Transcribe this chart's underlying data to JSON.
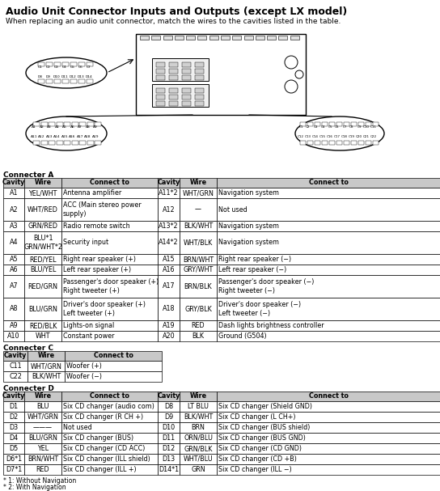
{
  "title": "Audio Unit Connector Inputs and Outputs (except LX model)",
  "subtitle": "When replacing an audio unit connector, match the wires to the cavities listed in the table.",
  "connectorA_header": "Connecter A",
  "connectorA_cols_left": [
    "Cavity",
    "Wire",
    "Connect to"
  ],
  "connectorA_cols_right": [
    "Cavity",
    "Wire",
    "Connect to"
  ],
  "connectorA_rows": [
    [
      "A1",
      "YEL/WHT",
      "Antenna amplifier",
      "A11*2",
      "WHT/GRN",
      "Navigation system"
    ],
    [
      "A2",
      "WHT/RED",
      "ACC (Main stereo power\nsupply)",
      "A12",
      "—",
      "Not used"
    ],
    [
      "A3",
      "GRN/RED",
      "Radio remote switch",
      "A13*2",
      "BLK/WHT",
      "Navigation system"
    ],
    [
      "A4",
      "BLU*1\nGRN/WHT*2",
      "Security input",
      "A14*2",
      "WHT/BLK",
      "Navigation system"
    ],
    [
      "A5",
      "RED/YEL",
      "Right rear speaker (+)",
      "A15",
      "BRN/WHT",
      "Right rear speaker (−)"
    ],
    [
      "A6",
      "BLU/YEL",
      "Left rear speaker (+)",
      "A16",
      "GRY/WHT",
      "Left rear speaker (−)"
    ],
    [
      "A7",
      "RED/GRN",
      "Passenger's door speaker (+)\nRight tweeter (+)",
      "A17",
      "BRN/BLK",
      "Passenger's door speaker (−)\nRight tweeter (−)"
    ],
    [
      "A8",
      "BLU/GRN",
      "Driver's door speaker (+)\nLeft tweeter (+)",
      "A18",
      "GRY/BLK",
      "Driver's door speaker (−)\nLeft tweeter (−)"
    ],
    [
      "A9",
      "RED/BLK",
      "Lights-on signal",
      "A19",
      "RED",
      "Dash lights brightness controller"
    ],
    [
      "A10",
      "WHT",
      "Constant power",
      "A20",
      "BLK",
      "Ground (G504)"
    ]
  ],
  "connectorC_header": "Connecter C",
  "connectorC_cols": [
    "Cavity",
    "Wire",
    "Connect to"
  ],
  "connectorC_rows": [
    [
      "C11",
      "WHT/GRN",
      "Woofer (+)"
    ],
    [
      "C22",
      "BLK/WHT",
      "Woofer (−)"
    ]
  ],
  "connectorD_header": "Connecter D",
  "connectorD_cols_left": [
    "Cavity",
    "Wire",
    "Connect to"
  ],
  "connectorD_cols_right": [
    "Cavity",
    "Wire",
    "Connect to"
  ],
  "connectorD_rows": [
    [
      "D1",
      "BLU",
      "Six CD changer (audio com)",
      "D8",
      "LT BLU",
      "Six CD changer (Shield GND)"
    ],
    [
      "D2",
      "WHT/GRN",
      "Six CD changer (R CH +)",
      "D9",
      "BLK/WHT",
      "Six CD changer (L CH+)"
    ],
    [
      "D3",
      "———",
      "Not used",
      "D10",
      "BRN",
      "Six CD changer (BUS shield)"
    ],
    [
      "D4",
      "BLU/GRN",
      "Six CD changer (BUS)",
      "D11",
      "ORN/BLU",
      "Six CD changer (BUS GND)"
    ],
    [
      "D5",
      "YEL",
      "Six CD changer (CD ACC)",
      "D12",
      "GRN/BLK",
      "Six CD changer (CD GND)"
    ],
    [
      "D6*1",
      "BRN/WHT",
      "Six CD changer (ILL shield)",
      "D13",
      "WHT/BLU",
      "Six CD changer (CD +B)"
    ],
    [
      "D7*1",
      "RED",
      "Six CD changer (ILL +)",
      "D14*1",
      "GRN",
      "Six CD changer (ILL −)"
    ]
  ],
  "footnotes": [
    "* 1: Without Navigation",
    "* 2: With Navigation"
  ],
  "bg_color": "#ffffff",
  "header_bg": "#c8c8c8"
}
